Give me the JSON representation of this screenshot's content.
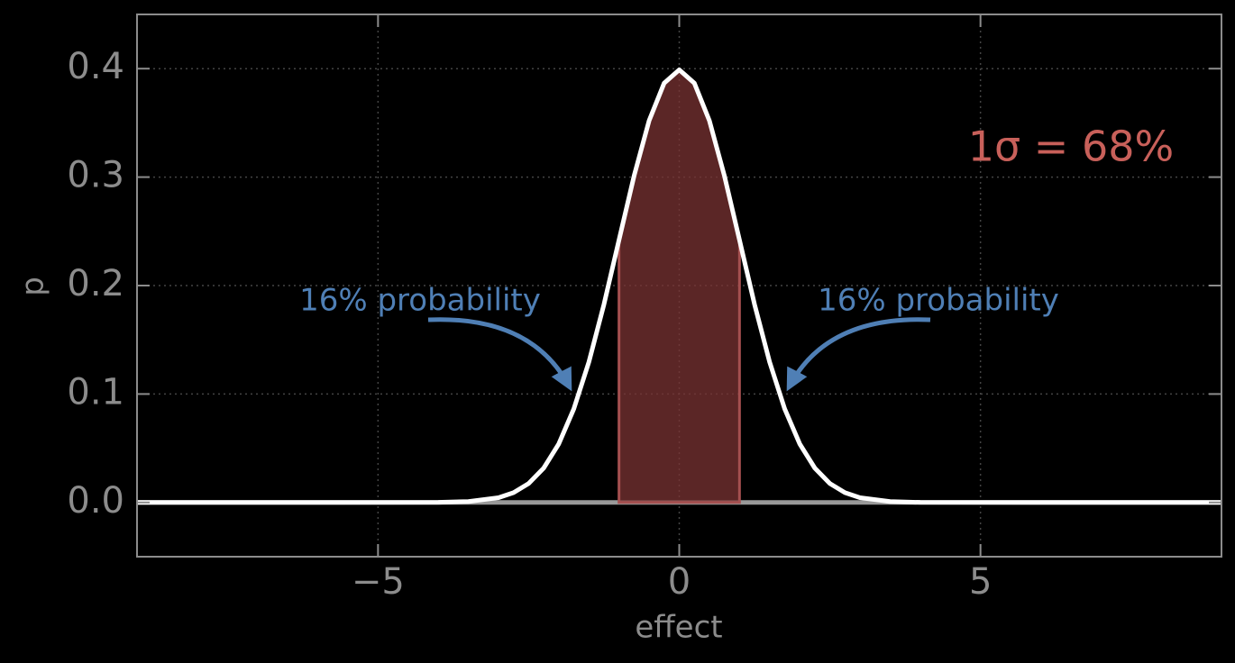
{
  "chart_data": {
    "type": "line",
    "xlabel": "effect",
    "ylabel": "p",
    "xlim": [
      -9,
      9
    ],
    "ylim": [
      -0.05,
      0.45
    ],
    "xticks": [
      {
        "value": -5,
        "label": "−5"
      },
      0,
      5
    ],
    "yticks": [
      {
        "value": 0,
        "label": "0.0"
      },
      0.1,
      0.2,
      0.3,
      0.4
    ],
    "grid": true,
    "series": [
      {
        "kind": "area",
        "color": "#7a3333",
        "x": [
          -1,
          -0.75,
          -0.5,
          -0.25,
          0,
          0.25,
          0.5,
          0.75,
          1
        ],
        "values": [
          0.242,
          0.3011,
          0.3521,
          0.3867,
          0.3989,
          0.3867,
          0.3521,
          0.3011,
          0.242
        ]
      },
      {
        "kind": "line",
        "color": "#ffffff",
        "x": [
          -9,
          -6,
          -4,
          -3.5,
          -3,
          -2.75,
          -2.5,
          -2.25,
          -2,
          -1.75,
          -1.5,
          -1.25,
          -1,
          -0.75,
          -0.5,
          -0.25,
          0,
          0.25,
          0.5,
          0.75,
          1,
          1.25,
          1.5,
          1.75,
          2,
          2.25,
          2.5,
          2.75,
          3,
          3.5,
          4,
          6,
          9
        ],
        "values": [
          0,
          0,
          0.0001,
          0.0009,
          0.0044,
          0.0091,
          0.0175,
          0.0317,
          0.054,
          0.0863,
          0.1295,
          0.1826,
          0.242,
          0.3011,
          0.3521,
          0.3867,
          0.3989,
          0.3867,
          0.3521,
          0.3011,
          0.242,
          0.1826,
          0.1295,
          0.0863,
          0.054,
          0.0317,
          0.0175,
          0.0091,
          0.0044,
          0.0009,
          0.0001,
          0,
          0
        ]
      }
    ],
    "annotations": [
      {
        "text": "1σ = 68%",
        "color": "#c8605a"
      },
      {
        "text": "16% probability",
        "color": "#4f7fb5"
      },
      {
        "text": "16% probability",
        "color": "#4f7fb5"
      }
    ]
  }
}
